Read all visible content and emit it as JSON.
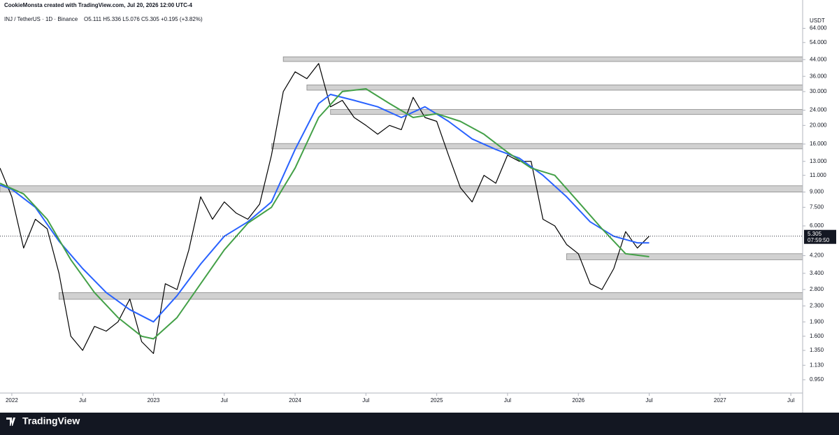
{
  "chart_data": {
    "type": "line",
    "attribution": "CookieMonsta created with TradingView.com, Jul 20, 2026 12:00 UTC-4",
    "symbol": "INJ / TetherUS · 1D · Binance",
    "ohlc": "O5.111 H5.336 L5.076 C5.305 +0.195 (+3.82%)",
    "currency": "USDT",
    "last_price": 5.305,
    "countdown": "07:59:50",
    "brand": "TradingView",
    "log_scale": true,
    "xlim": [
      "2021-12",
      "2027-08"
    ],
    "ylim": [
      0.81,
      76
    ],
    "xticks": [
      {
        "value": "2022-01",
        "label": "2022"
      },
      {
        "value": "2022-07",
        "label": "Jul"
      },
      {
        "value": "2023-01",
        "label": "2023"
      },
      {
        "value": "2023-07",
        "label": "Jul"
      },
      {
        "value": "2024-01",
        "label": "2024"
      },
      {
        "value": "2024-07",
        "label": "Jul"
      },
      {
        "value": "2025-01",
        "label": "2025"
      },
      {
        "value": "2025-07",
        "label": "Jul"
      },
      {
        "value": "2026-01",
        "label": "2026"
      },
      {
        "value": "2026-07",
        "label": "Jul"
      },
      {
        "value": "2027-01",
        "label": "2027"
      },
      {
        "value": "2027-07",
        "label": "Jul"
      }
    ],
    "yticks": [
      {
        "value": 0.95,
        "label": "0.950"
      },
      {
        "value": 1.13,
        "label": "1.130"
      },
      {
        "value": 1.35,
        "label": "1.350"
      },
      {
        "value": 1.6,
        "label": "1.600"
      },
      {
        "value": 1.9,
        "label": "1.900"
      },
      {
        "value": 2.3,
        "label": "2.300"
      },
      {
        "value": 2.8,
        "label": "2.800"
      },
      {
        "value": 3.4,
        "label": "3.400"
      },
      {
        "value": 4.2,
        "label": "4.200"
      },
      {
        "value": 6,
        "label": "6.000"
      },
      {
        "value": 7.5,
        "label": "7.500"
      },
      {
        "value": 9,
        "label": "9.000"
      },
      {
        "value": 11,
        "label": "11.000"
      },
      {
        "value": 13,
        "label": "13.000"
      },
      {
        "value": 16,
        "label": "16.000"
      },
      {
        "value": 20,
        "label": "20.000"
      },
      {
        "value": 24,
        "label": "24.000"
      },
      {
        "value": 30,
        "label": "30.000"
      },
      {
        "value": 36,
        "label": "36.000"
      },
      {
        "value": 44,
        "label": "44.000"
      },
      {
        "value": 54,
        "label": "54.000"
      },
      {
        "value": 64,
        "label": "64.000"
      }
    ],
    "zones": [
      {
        "from": "2023-12",
        "low": 43,
        "high": 45.5
      },
      {
        "from": "2024-02",
        "low": 30.5,
        "high": 32.5
      },
      {
        "from": "2024-04",
        "low": 22.8,
        "high": 24.2
      },
      {
        "from": "2023-11",
        "low": 15.1,
        "high": 16.1
      },
      {
        "from": "2021-12",
        "low": 9.0,
        "high": 9.7
      },
      {
        "from": "2025-12",
        "low": 4.0,
        "high": 4.3
      },
      {
        "from": "2022-05",
        "low": 2.49,
        "high": 2.7
      }
    ],
    "series": [
      {
        "color": "#000000",
        "x": [
          "2021-12",
          "2022-01",
          "2022-02",
          "2022-03",
          "2022-04",
          "2022-05",
          "2022-06",
          "2022-07",
          "2022-08",
          "2022-09",
          "2022-10",
          "2022-11",
          "2022-12",
          "2023-01",
          "2023-02",
          "2023-03",
          "2023-04",
          "2023-05",
          "2023-06",
          "2023-07",
          "2023-08",
          "2023-09",
          "2023-10",
          "2023-11",
          "2023-12",
          "2024-01",
          "2024-02",
          "2024-03",
          "2024-04",
          "2024-05",
          "2024-06",
          "2024-07",
          "2024-08",
          "2024-09",
          "2024-10",
          "2024-11",
          "2024-12",
          "2025-01",
          "2025-02",
          "2025-03",
          "2025-04",
          "2025-05",
          "2025-06",
          "2025-07",
          "2025-08",
          "2025-09",
          "2025-10",
          "2025-11",
          "2025-12",
          "2026-01",
          "2026-02",
          "2026-03",
          "2026-04",
          "2026-05",
          "2026-06",
          "2026-07"
        ],
        "values": [
          12,
          8.5,
          4.6,
          6.5,
          5.8,
          3.4,
          1.6,
          1.35,
          1.8,
          1.7,
          1.9,
          2.5,
          1.5,
          1.3,
          3.0,
          2.8,
          4.5,
          8.5,
          6.5,
          8.0,
          7.0,
          6.5,
          7.8,
          14,
          30,
          38,
          35,
          42,
          25,
          27,
          22,
          20,
          18,
          20,
          19,
          28,
          22,
          21,
          14,
          9.5,
          8.0,
          11,
          10,
          14,
          13,
          13,
          6.5,
          6.0,
          4.8,
          4.3,
          3.0,
          2.8,
          3.6,
          5.6,
          4.6,
          5.305
        ]
      },
      {
        "color": "#2962ff",
        "x": [
          "2021-12",
          "2022-01",
          "2022-03",
          "2022-05",
          "2022-07",
          "2022-09",
          "2022-11",
          "2023-01",
          "2023-03",
          "2023-05",
          "2023-07",
          "2023-09",
          "2023-11",
          "2024-01",
          "2024-03",
          "2024-04",
          "2024-06",
          "2024-08",
          "2024-10",
          "2024-12",
          "2025-02",
          "2025-04",
          "2025-06",
          "2025-08",
          "2025-10",
          "2025-12",
          "2026-02",
          "2026-04",
          "2026-06",
          "2026-07"
        ],
        "values": [
          9.8,
          9.3,
          7.5,
          5.0,
          3.6,
          2.7,
          2.2,
          1.9,
          2.6,
          3.8,
          5.3,
          6.3,
          8.0,
          15,
          26,
          29,
          27,
          25,
          22,
          25,
          21,
          17,
          15,
          13.5,
          11,
          8.5,
          6.3,
          5.3,
          4.9,
          4.9
        ]
      },
      {
        "color": "#43a047",
        "x": [
          "2021-12",
          "2022-02",
          "2022-04",
          "2022-06",
          "2022-08",
          "2022-10",
          "2022-12",
          "2023-01",
          "2023-03",
          "2023-05",
          "2023-07",
          "2023-09",
          "2023-11",
          "2024-01",
          "2024-03",
          "2024-05",
          "2024-07",
          "2024-09",
          "2024-11",
          "2025-01",
          "2025-03",
          "2025-05",
          "2025-07",
          "2025-09",
          "2025-11",
          "2026-01",
          "2026-03",
          "2026-05",
          "2026-07"
        ],
        "values": [
          10,
          8.8,
          6.5,
          4.0,
          2.7,
          2.0,
          1.6,
          1.55,
          2.0,
          3.0,
          4.5,
          6.2,
          7.5,
          12,
          22,
          30,
          31,
          26,
          22,
          23,
          21,
          18,
          14.5,
          12,
          11,
          8.0,
          5.8,
          4.3,
          4.15
        ]
      }
    ]
  }
}
